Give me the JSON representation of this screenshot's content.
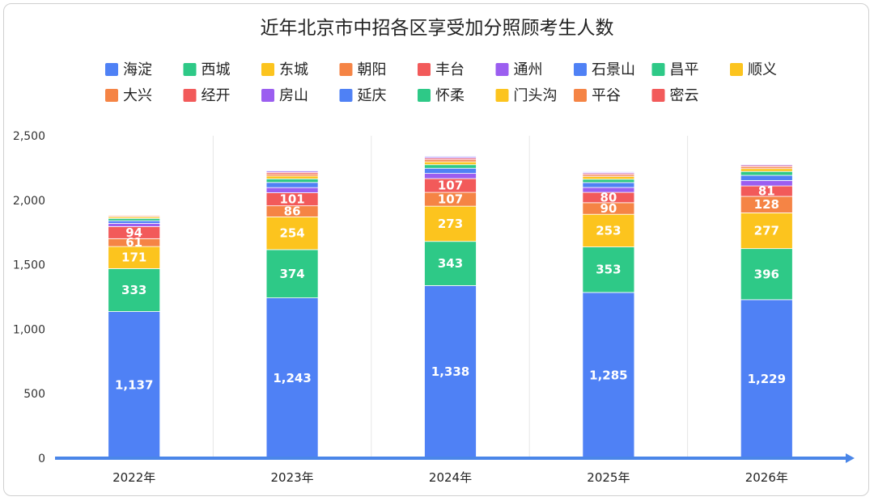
{
  "chart_data": {
    "type": "bar",
    "stacked": true,
    "title": "近年北京市中招各区享受加分照顾考生人数",
    "categories": [
      "2022年",
      "2023年",
      "2024年",
      "2025年",
      "2026年"
    ],
    "ylim": [
      0,
      2500
    ],
    "yticks": [
      "0",
      "500",
      "1,000",
      "1,500",
      "2,000",
      "2,500"
    ],
    "ytick_values": [
      0,
      500,
      1000,
      1500,
      2000,
      2500
    ],
    "grid": "vertical separators only",
    "legend_position": "top",
    "series": [
      {
        "name": "海淀",
        "color": "#4f81f5",
        "values": [
          1137,
          1243,
          1338,
          1285,
          1229
        ],
        "labels": [
          "1,137",
          "1,243",
          "1,338",
          "1,285",
          "1,229"
        ]
      },
      {
        "name": "西城",
        "color": "#2ec987",
        "values": [
          333,
          374,
          343,
          353,
          396
        ],
        "labels": [
          "333",
          "374",
          "343",
          "353",
          "396"
        ]
      },
      {
        "name": "东城",
        "color": "#fcc41e",
        "values": [
          171,
          254,
          273,
          253,
          277
        ],
        "labels": [
          "171",
          "254",
          "273",
          "253",
          "277"
        ]
      },
      {
        "name": "朝阳",
        "color": "#f58445",
        "values": [
          61,
          86,
          107,
          90,
          128
        ],
        "labels": [
          "61",
          "86",
          "107",
          "90",
          "128"
        ]
      },
      {
        "name": "丰台",
        "color": "#f25a5a",
        "values": [
          94,
          101,
          107,
          80,
          81
        ],
        "labels": [
          "94",
          "101",
          "107",
          "80",
          "81"
        ]
      },
      {
        "name": "通州",
        "color": "#9b5ef0",
        "values": [
          25,
          40,
          40,
          38,
          42
        ],
        "labels": [
          "",
          "",
          "",
          "",
          ""
        ]
      },
      {
        "name": "石景山",
        "color": "#4f81f5",
        "values": [
          20,
          40,
          40,
          38,
          40
        ],
        "labels": [
          "",
          "",
          "",
          "",
          ""
        ]
      },
      {
        "name": "昌平",
        "color": "#2ec987",
        "values": [
          18,
          28,
          28,
          26,
          30
        ],
        "labels": [
          "",
          "",
          "",
          "",
          ""
        ]
      },
      {
        "name": "顺义",
        "color": "#fcc41e",
        "values": [
          12,
          22,
          22,
          20,
          22
        ],
        "labels": [
          "",
          "",
          "",
          "",
          ""
        ]
      },
      {
        "name": "大兴",
        "color": "#f58445",
        "values": [
          8,
          16,
          16,
          14,
          14
        ],
        "labels": [
          "",
          "",
          "",
          "",
          ""
        ]
      },
      {
        "name": "经开",
        "color": "#f25a5a",
        "values": [
          5,
          12,
          12,
          10,
          10
        ],
        "labels": [
          "",
          "",
          "",
          "",
          ""
        ]
      },
      {
        "name": "房山",
        "color": "#9b5ef0",
        "values": [
          4,
          10,
          10,
          9,
          8
        ],
        "labels": [
          "",
          "",
          "",
          "",
          ""
        ]
      },
      {
        "name": "延庆",
        "color": "#4f81f5",
        "values": [
          3,
          6,
          6,
          6,
          5
        ],
        "labels": [
          "",
          "",
          "",
          "",
          ""
        ]
      },
      {
        "name": "怀柔",
        "color": "#2ec987",
        "values": [
          3,
          5,
          5,
          5,
          5
        ],
        "labels": [
          "",
          "",
          "",
          "",
          ""
        ]
      },
      {
        "name": "门头沟",
        "color": "#fcc41e",
        "values": [
          2,
          4,
          4,
          4,
          4
        ],
        "labels": [
          "",
          "",
          "",
          "",
          ""
        ]
      },
      {
        "name": "平谷",
        "color": "#f58445",
        "values": [
          2,
          4,
          4,
          4,
          4
        ],
        "labels": [
          "",
          "",
          "",
          "",
          ""
        ]
      },
      {
        "name": "密云",
        "color": "#f25a5a",
        "values": [
          2,
          5,
          5,
          4,
          4
        ],
        "labels": [
          "",
          "",
          "",
          "",
          ""
        ]
      }
    ]
  }
}
